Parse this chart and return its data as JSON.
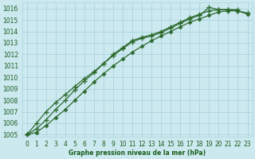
{
  "background_color": "#cce9f0",
  "grid_color": "#aad4dd",
  "line_color": "#2d6a2d",
  "marker_color": "#2d6a2d",
  "xlabel": "Graphe pression niveau de la mer (hPa)",
  "ylim": [
    1004.8,
    1016.5
  ],
  "xlim": [
    -0.5,
    23.5
  ],
  "yticks": [
    1005,
    1006,
    1007,
    1008,
    1009,
    1010,
    1011,
    1012,
    1013,
    1014,
    1015,
    1016
  ],
  "xticks": [
    0,
    1,
    2,
    3,
    4,
    5,
    6,
    7,
    8,
    9,
    10,
    11,
    12,
    13,
    14,
    15,
    16,
    17,
    18,
    19,
    20,
    21,
    22,
    23
  ],
  "series1_x": [
    0,
    1,
    2,
    3,
    4,
    5,
    6,
    7,
    8,
    9,
    10,
    11,
    12,
    13,
    14,
    15,
    16,
    17,
    18,
    19,
    20,
    21,
    22
  ],
  "series1_y": [
    1005.0,
    1006.0,
    1007.0,
    1007.8,
    1008.5,
    1009.2,
    1009.9,
    1010.5,
    1011.2,
    1011.9,
    1012.5,
    1013.1,
    1013.4,
    1013.6,
    1013.9,
    1014.3,
    1014.7,
    1015.1,
    1015.4,
    1016.1,
    1015.9,
    1015.9,
    1015.9
  ],
  "series2_x": [
    0,
    1,
    2,
    3,
    4,
    5,
    6,
    7,
    8,
    9,
    10,
    11,
    12,
    13,
    14,
    15,
    16,
    17,
    18,
    19,
    20,
    21,
    22,
    23
  ],
  "series2_y": [
    1005.0,
    1005.5,
    1006.3,
    1007.2,
    1008.0,
    1008.9,
    1009.7,
    1010.4,
    1011.2,
    1012.0,
    1012.6,
    1013.2,
    1013.5,
    1013.7,
    1014.0,
    1014.4,
    1014.8,
    1015.2,
    1015.5,
    1015.8,
    1015.9,
    1015.9,
    1015.8,
    1015.6
  ],
  "series3_x": [
    0,
    1,
    2,
    3,
    4,
    5,
    6,
    7,
    8,
    9,
    10,
    11,
    12,
    13,
    14,
    15,
    16,
    17,
    18,
    19,
    20,
    21,
    22,
    23
  ],
  "series3_y": [
    1005.0,
    1005.2,
    1005.8,
    1006.5,
    1007.2,
    1008.0,
    1008.8,
    1009.6,
    1010.3,
    1011.0,
    1011.6,
    1012.2,
    1012.7,
    1013.2,
    1013.6,
    1014.0,
    1014.4,
    1014.8,
    1015.1,
    1015.4,
    1015.7,
    1015.8,
    1015.8,
    1015.5
  ]
}
